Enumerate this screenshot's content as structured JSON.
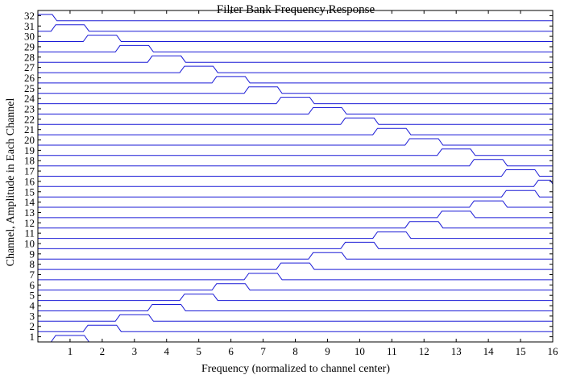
{
  "chart_data": {
    "type": "line",
    "title": "Filter Bank Frequency Response",
    "xlabel": "Frequency (normalized to channel center)",
    "ylabel": "Channel, Amplitude in Each Channel",
    "xlim": [
      0,
      16
    ],
    "ylim": [
      0.5,
      32.5
    ],
    "xticks": [
      "1",
      "2",
      "3",
      "4",
      "5",
      "6",
      "7",
      "8",
      "9",
      "10",
      "11",
      "12",
      "13",
      "14",
      "15",
      "16"
    ],
    "yticks": [
      "1",
      "2",
      "3",
      "4",
      "5",
      "6",
      "7",
      "8",
      "9",
      "10",
      "11",
      "12",
      "13",
      "14",
      "15",
      "16",
      "17",
      "18",
      "19",
      "20",
      "21",
      "22",
      "23",
      "24",
      "25",
      "26",
      "27",
      "28",
      "29",
      "30",
      "31",
      "32"
    ],
    "line_color": "#1a1ad6",
    "grid": false,
    "passband_amplitude": 1,
    "channels": [
      {
        "channel": 1,
        "passband": [
          0.5,
          1.5
        ]
      },
      {
        "channel": 2,
        "passband": [
          1.5,
          2.5
        ]
      },
      {
        "channel": 3,
        "passband": [
          2.5,
          3.5
        ]
      },
      {
        "channel": 4,
        "passband": [
          3.5,
          4.5
        ]
      },
      {
        "channel": 5,
        "passband": [
          4.5,
          5.5
        ]
      },
      {
        "channel": 6,
        "passband": [
          5.5,
          6.5
        ]
      },
      {
        "channel": 7,
        "passband": [
          6.5,
          7.5
        ]
      },
      {
        "channel": 8,
        "passband": [
          7.5,
          8.5
        ]
      },
      {
        "channel": 9,
        "passband": [
          8.5,
          9.5
        ]
      },
      {
        "channel": 10,
        "passband": [
          9.5,
          10.5
        ]
      },
      {
        "channel": 11,
        "passband": [
          10.5,
          11.5
        ]
      },
      {
        "channel": 12,
        "passband": [
          11.5,
          12.5
        ]
      },
      {
        "channel": 13,
        "passband": [
          12.5,
          13.5
        ]
      },
      {
        "channel": 14,
        "passband": [
          13.5,
          14.5
        ]
      },
      {
        "channel": 15,
        "passband": [
          14.5,
          15.5
        ]
      },
      {
        "channel": 16,
        "passband": [
          15.5,
          16.0
        ]
      },
      {
        "channel": 17,
        "passband": [
          14.5,
          15.5
        ]
      },
      {
        "channel": 18,
        "passband": [
          13.5,
          14.5
        ]
      },
      {
        "channel": 19,
        "passband": [
          12.5,
          13.5
        ]
      },
      {
        "channel": 20,
        "passband": [
          11.5,
          12.5
        ]
      },
      {
        "channel": 21,
        "passband": [
          10.5,
          11.5
        ]
      },
      {
        "channel": 22,
        "passband": [
          9.5,
          10.5
        ]
      },
      {
        "channel": 23,
        "passband": [
          8.5,
          9.5
        ]
      },
      {
        "channel": 24,
        "passband": [
          7.5,
          8.5
        ]
      },
      {
        "channel": 25,
        "passband": [
          6.5,
          7.5
        ]
      },
      {
        "channel": 26,
        "passband": [
          5.5,
          6.5
        ]
      },
      {
        "channel": 27,
        "passband": [
          4.5,
          5.5
        ]
      },
      {
        "channel": 28,
        "passband": [
          3.5,
          4.5
        ]
      },
      {
        "channel": 29,
        "passband": [
          2.5,
          3.5
        ]
      },
      {
        "channel": 30,
        "passband": [
          1.5,
          2.5
        ]
      },
      {
        "channel": 31,
        "passband": [
          0.5,
          1.5
        ]
      },
      {
        "channel": 32,
        "passband": [
          0.0,
          0.5
        ]
      }
    ]
  }
}
